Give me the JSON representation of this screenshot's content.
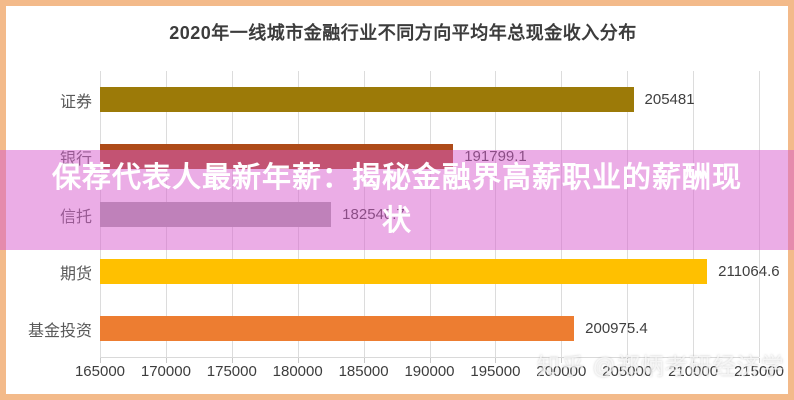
{
  "banner": {
    "text": "保荐代表人最新年薪：揭秘金融界高薪职业的薪酬现状"
  },
  "watermark": "知乎 @郑炳考研经济学",
  "colors": {
    "frame_border": "#F3BA8A",
    "banner_overlay": "rgba(216,92,206,0.5)",
    "gridline": "#DCDCDC",
    "title_text": "#3C3C3C",
    "category_text": "#595959",
    "value_text": "#3F3F3F"
  },
  "chart_data": {
    "type": "bar",
    "orientation": "horizontal",
    "title": "2020年一线城市金融行业不同方向平均年总现金收入分布",
    "categories": [
      "证券",
      "银行",
      "信托",
      "期货",
      "基金投资"
    ],
    "values": [
      205481,
      191799.1,
      182540.7,
      211064.6,
      200975.4
    ],
    "value_labels": [
      "205481",
      "191799.1",
      "182540.7",
      "211064.6",
      "200975.4"
    ],
    "bar_colors": [
      "#9C7A08",
      "#AE4B19",
      "#A6A6A6",
      "#FFC000",
      "#ED7D31"
    ],
    "xlim": [
      165000,
      215000
    ],
    "x_tick_labels": [
      "165000",
      "170000",
      "175000",
      "180000",
      "185000",
      "190000",
      "195000",
      "200000",
      "205000",
      "210000",
      "215000"
    ],
    "xlabel": "",
    "ylabel": "",
    "grid": true,
    "legend": false
  }
}
